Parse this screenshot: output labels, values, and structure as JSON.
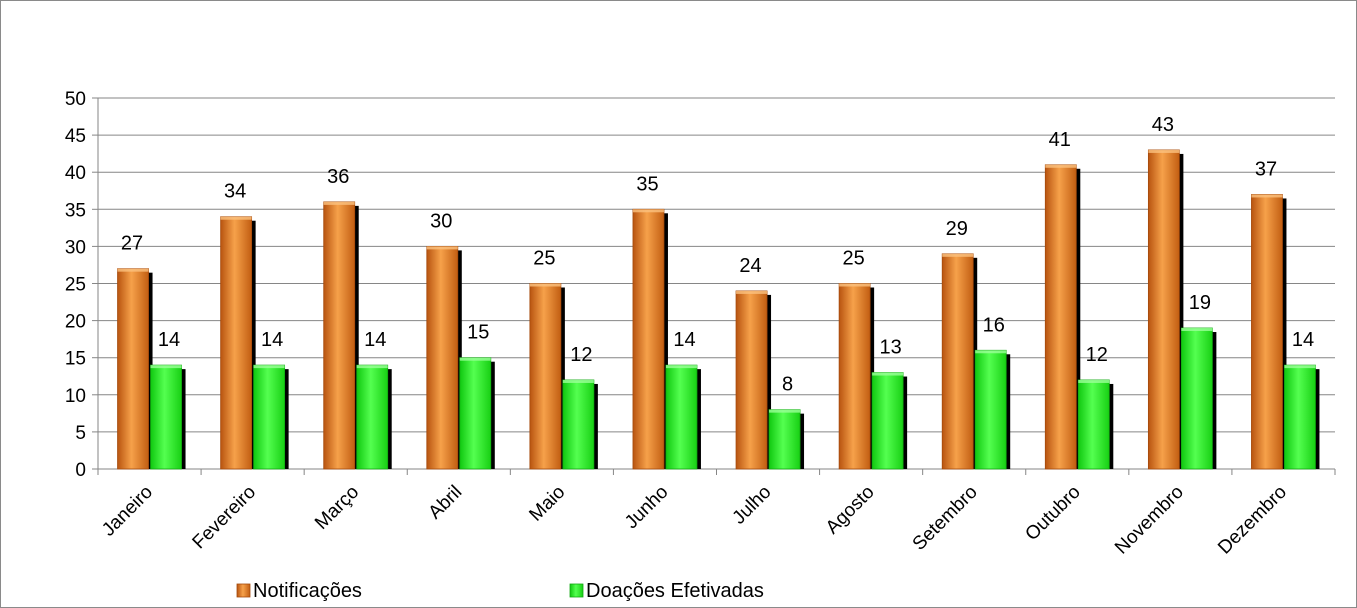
{
  "chart_data": {
    "type": "bar",
    "title": "",
    "xlabel": "",
    "ylabel": "",
    "categories": [
      "Janeiro",
      "Fevereiro",
      "Março",
      "Abril",
      "Maio",
      "Junho",
      "Julho",
      "Agosto",
      "Setembro",
      "Outubro",
      "Novembro",
      "Dezembro"
    ],
    "series": [
      {
        "name": "Notificações",
        "values": [
          27,
          34,
          36,
          30,
          25,
          35,
          24,
          25,
          29,
          41,
          43,
          37
        ],
        "color": "#e8801e"
      },
      {
        "name": "Doações Efetivadas",
        "values": [
          14,
          14,
          14,
          15,
          12,
          14,
          8,
          13,
          16,
          12,
          19,
          14
        ],
        "color": "#22e61e"
      }
    ],
    "ylim": [
      0,
      50
    ],
    "yticks": [
      0,
      5,
      10,
      15,
      20,
      25,
      30,
      35,
      40,
      45,
      50
    ],
    "grid": true,
    "legend_position": "bottom",
    "data_labels": true
  }
}
